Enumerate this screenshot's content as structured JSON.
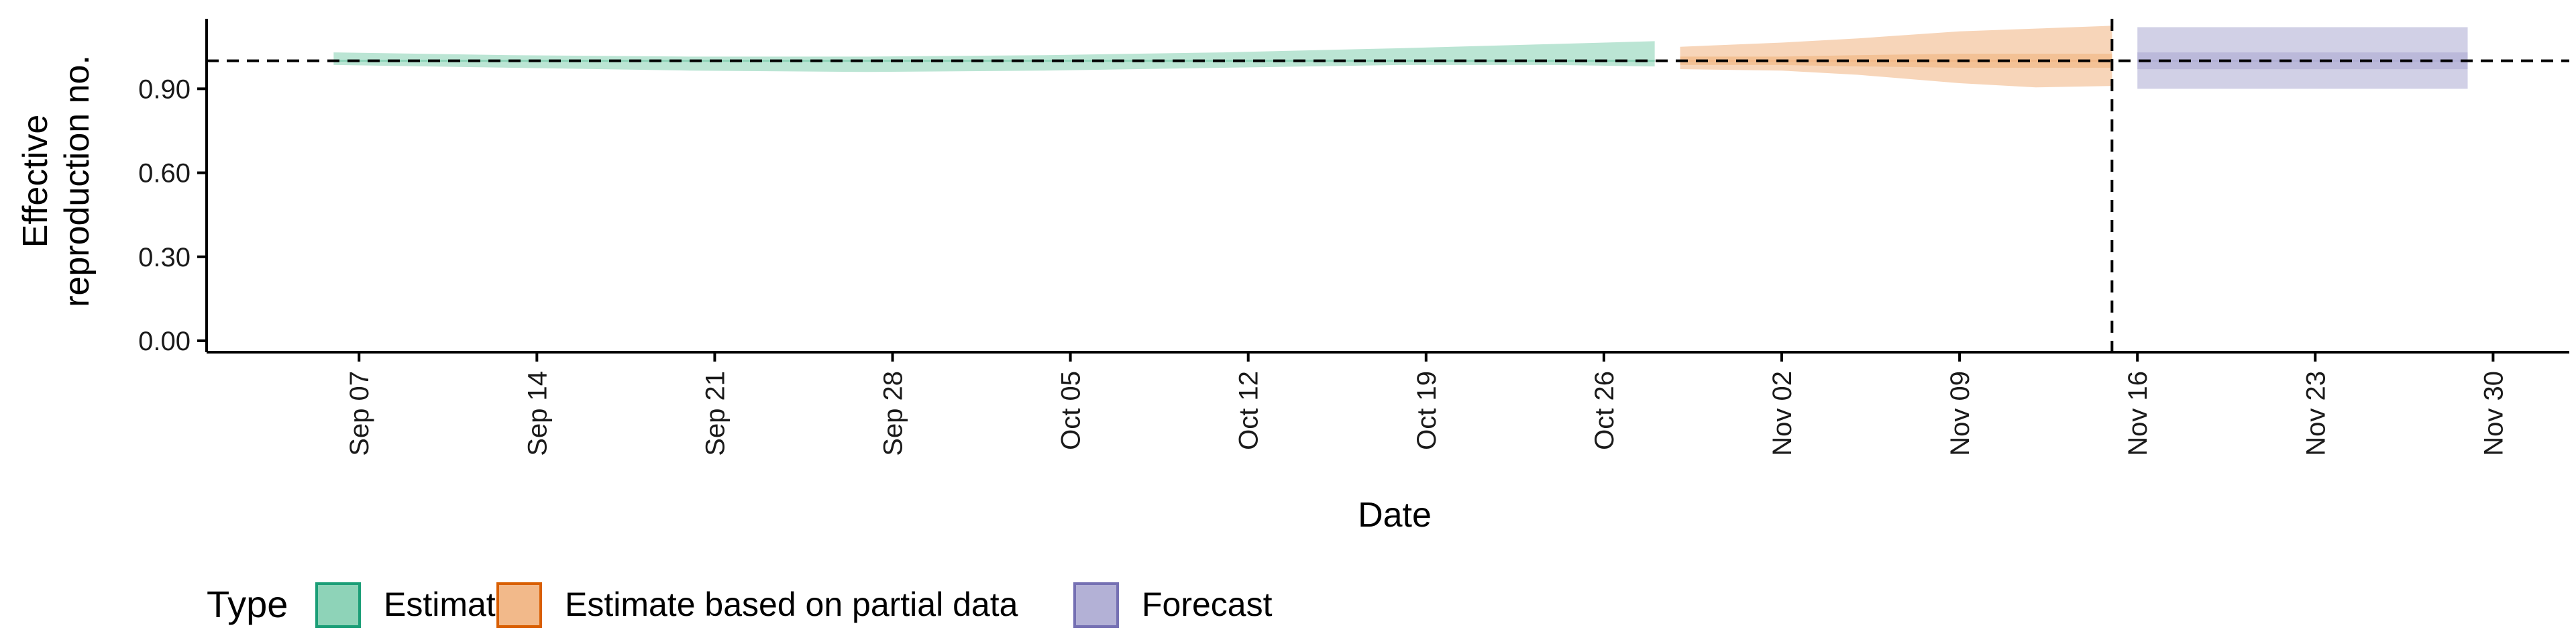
{
  "chart_data": {
    "type": "area",
    "xlabel": "Date",
    "ylabel_lines": [
      "Effective",
      "reproduction no."
    ],
    "ylim": [
      0,
      1.15
    ],
    "yticks": [
      0.0,
      0.3,
      0.6,
      0.9
    ],
    "ytick_labels": [
      "0.00",
      "0.30",
      "0.60",
      "0.90"
    ],
    "xticks": [
      "2020-09-07",
      "2020-09-14",
      "2020-09-21",
      "2020-09-28",
      "2020-10-05",
      "2020-10-12",
      "2020-10-19",
      "2020-10-26",
      "2020-11-02",
      "2020-11-09",
      "2020-11-16",
      "2020-11-23",
      "2020-11-30"
    ],
    "xtick_labels": [
      "Sep 07",
      "Sep 14",
      "Sep 21",
      "Sep 28",
      "Oct 05",
      "Oct 12",
      "Oct 19",
      "Oct 26",
      "Nov 02",
      "Nov 09",
      "Nov 16",
      "Nov 23",
      "Nov 30"
    ],
    "xlim": [
      "2020-09-01",
      "2020-12-03"
    ],
    "reference_hline": 1.0,
    "reference_vline": "2020-11-15",
    "legend": {
      "title": "Type",
      "position": "bottom-left",
      "entries": [
        {
          "label": "Estimate",
          "fill": "#8ed3b8",
          "stroke": "#1b9e77"
        },
        {
          "label": "Estimate based on partial data",
          "fill": "#f2b98a",
          "stroke": "#d95f02"
        },
        {
          "label": "Forecast",
          "fill": "#b3b1d6",
          "stroke": "#7570b3"
        }
      ]
    },
    "series": [
      {
        "name": "Estimate",
        "color": "#1b9e77",
        "band_color": "#8ed3b8",
        "x": [
          "2020-09-06",
          "2020-09-13",
          "2020-09-20",
          "2020-09-27",
          "2020-10-04",
          "2020-10-11",
          "2020-10-18",
          "2020-10-24",
          "2020-10-28"
        ],
        "lower": [
          0.985,
          0.975,
          0.965,
          0.96,
          0.965,
          0.975,
          0.985,
          0.985,
          0.98
        ],
        "upper": [
          1.03,
          1.02,
          1.015,
          1.015,
          1.02,
          1.03,
          1.045,
          1.06,
          1.07
        ],
        "median": [
          1.0,
          1.0,
          1.0,
          1.0,
          1.0,
          1.0,
          1.0,
          1.0,
          1.0
        ]
      },
      {
        "name": "Estimate based on partial data",
        "color": "#d95f02",
        "band_color": "#f2b98a",
        "x": [
          "2020-10-29",
          "2020-11-02",
          "2020-11-05",
          "2020-11-09",
          "2020-11-12",
          "2020-11-15"
        ],
        "lower": [
          0.97,
          0.965,
          0.95,
          0.92,
          0.905,
          0.91
        ],
        "upper": [
          1.05,
          1.065,
          1.08,
          1.105,
          1.115,
          1.125
        ],
        "inner_lower": [
          0.985,
          0.985,
          0.98,
          0.975,
          0.975,
          0.975
        ],
        "inner_upper": [
          1.015,
          1.015,
          1.02,
          1.025,
          1.025,
          1.025
        ],
        "median": [
          1.0,
          1.0,
          1.0,
          1.0,
          1.0,
          1.0
        ]
      },
      {
        "name": "Forecast",
        "color": "#7570b3",
        "band_color": "#b3b1d6",
        "x": [
          "2020-11-16",
          "2020-11-29"
        ],
        "lower": [
          0.9,
          0.9
        ],
        "upper": [
          1.12,
          1.12
        ],
        "inner_lower": [
          0.97,
          0.97
        ],
        "inner_upper": [
          1.03,
          1.03
        ],
        "median": [
          1.0,
          1.0
        ]
      }
    ]
  }
}
